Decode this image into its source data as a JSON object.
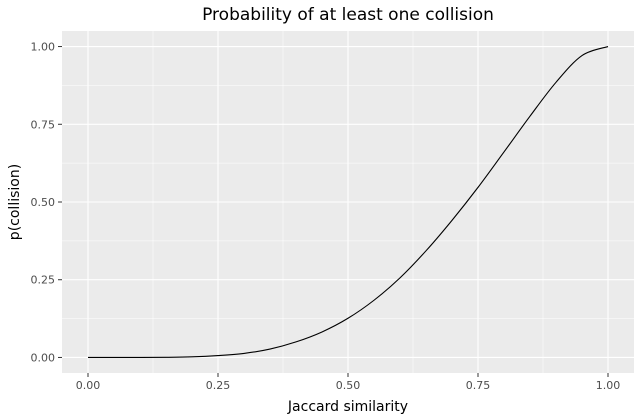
{
  "chart_data": {
    "type": "line",
    "title": "Probability of at least one collision",
    "xlabel": "Jaccard similarity",
    "ylabel": "p(collision)",
    "xlim": [
      -0.05,
      1.05
    ],
    "ylim": [
      -0.05,
      1.05
    ],
    "x_ticks": [
      0.0,
      0.25,
      0.5,
      0.75,
      1.0
    ],
    "x_tick_labels": [
      "0.00",
      "0.25",
      "0.50",
      "0.75",
      "1.00"
    ],
    "y_ticks": [
      0.0,
      0.25,
      0.5,
      0.75,
      1.0
    ],
    "y_tick_labels": [
      "0.00",
      "0.25",
      "0.50",
      "0.75",
      "1.00"
    ],
    "grid": true,
    "legend": "none",
    "series": [
      {
        "color": "#000000",
        "x": [
          0.0,
          0.05,
          0.1,
          0.15,
          0.2,
          0.25,
          0.3,
          0.35,
          0.4,
          0.45,
          0.5,
          0.55,
          0.6,
          0.65,
          0.7,
          0.75,
          0.8,
          0.85,
          0.9,
          0.95,
          1.0
        ],
        "y": [
          0.0,
          0.0,
          0.0,
          0.0005,
          0.002,
          0.006,
          0.013,
          0.027,
          0.05,
          0.082,
          0.126,
          0.184,
          0.256,
          0.343,
          0.441,
          0.547,
          0.661,
          0.776,
          0.885,
          0.971,
          1.0
        ]
      }
    ]
  },
  "colors": {
    "panel_background": "#ebebeb",
    "grid_major": "#ffffff",
    "line": "#000000"
  }
}
